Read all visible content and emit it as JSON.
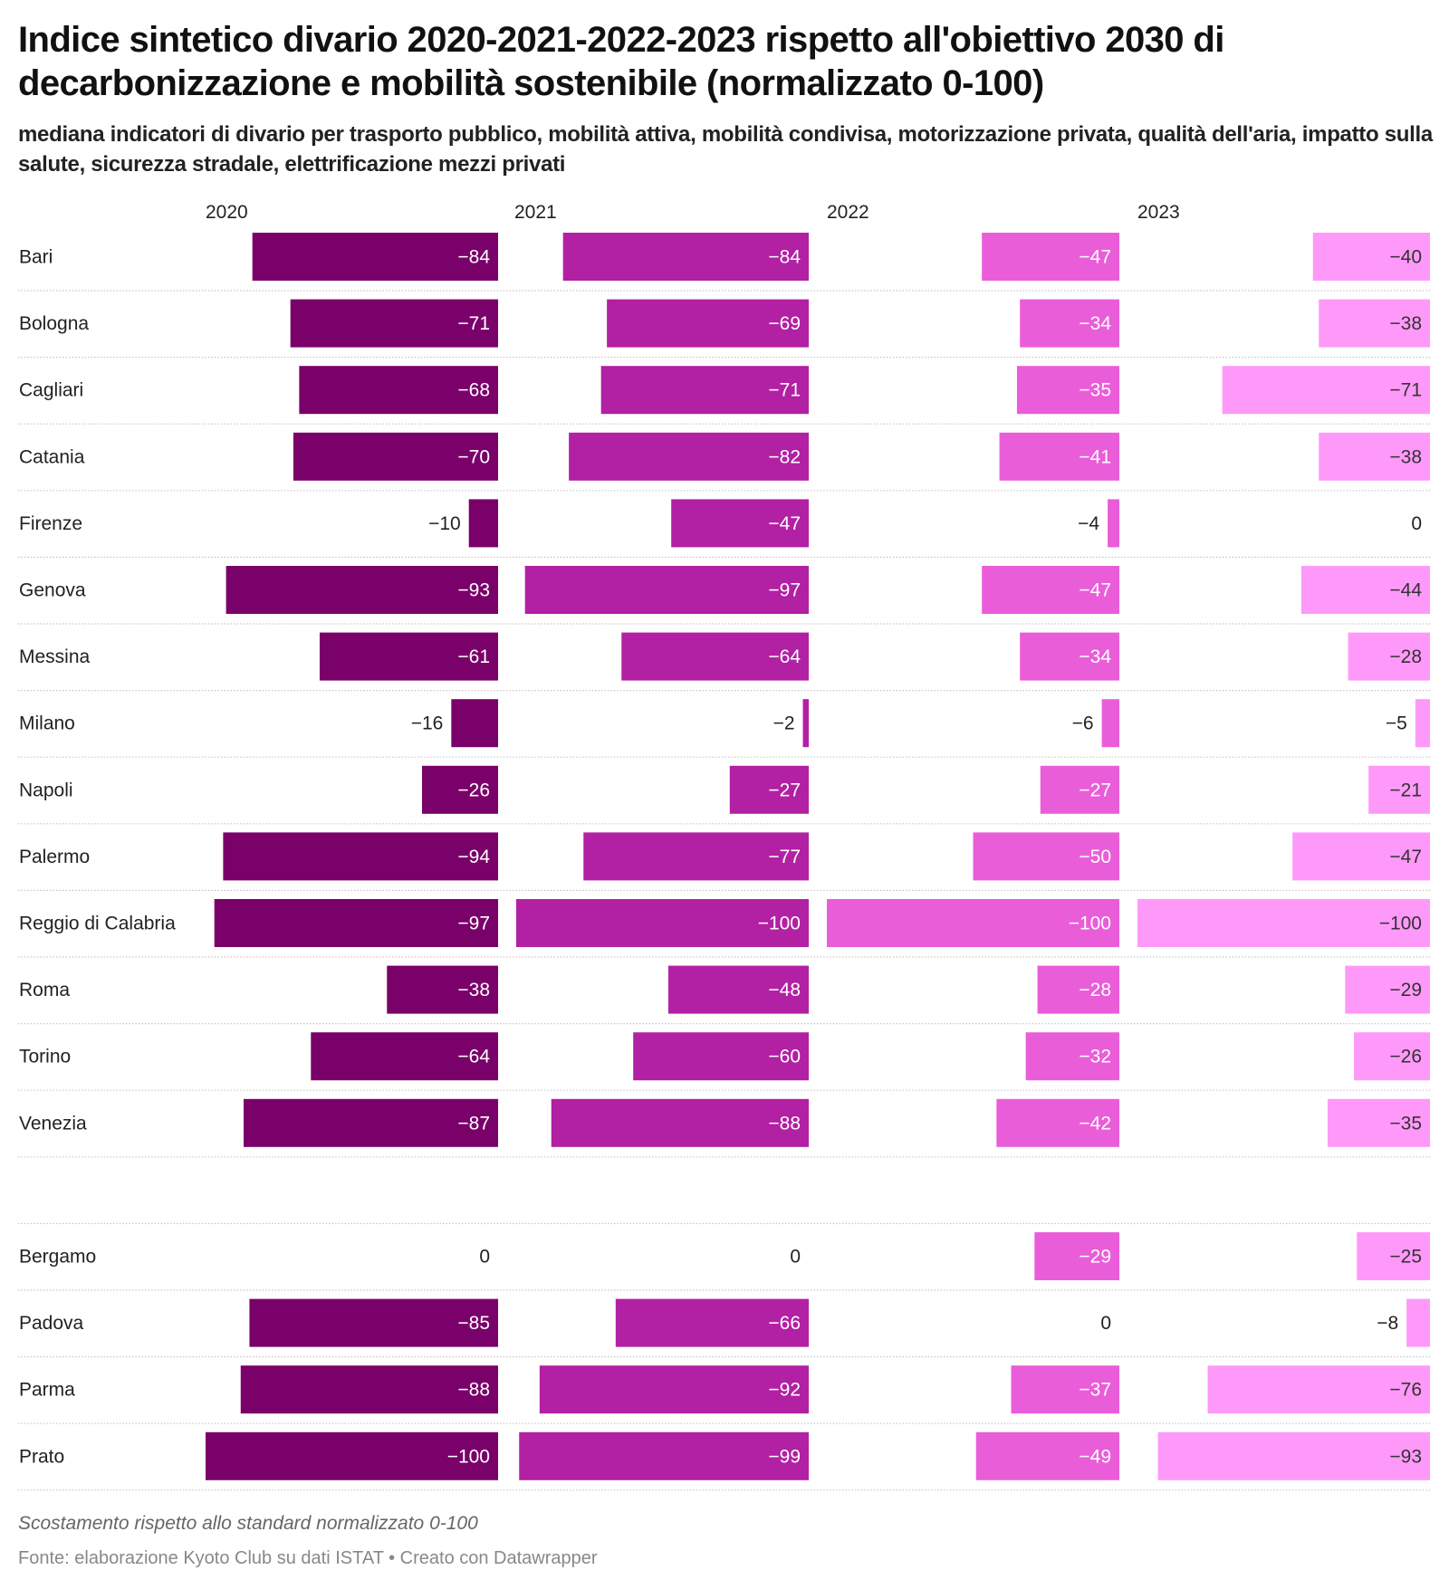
{
  "chart_data": {
    "type": "bar",
    "orientation": "horizontal",
    "layout": "small-multiples-columns",
    "title": "Indice sintetico divario 2020-2021-2022-2023 rispetto all'obiettivo 2030 di decarbonizzazione e mobilità sostenibile (normalizzato 0-100)",
    "subtitle": "mediana indicatori di divario per trasporto pubblico, mobilità attiva, mobilità condivisa, motorizzazione privata, qualità dell'aria, impatto sulla salute, sicurezza stradale, elettrificazione mezzi privati",
    "xlim": [
      -100,
      0
    ],
    "grid": false,
    "legend": "none",
    "series": [
      {
        "name": "2020",
        "color": "#7a006a",
        "label_color": "#ffffff",
        "values": [
          -84,
          -71,
          -68,
          -70,
          -10,
          -93,
          -61,
          -16,
          -26,
          -94,
          -97,
          -38,
          -64,
          -87,
          null,
          0,
          -85,
          -88,
          -100
        ]
      },
      {
        "name": "2021",
        "color": "#b220a3",
        "label_color": "#ffffff",
        "values": [
          -84,
          -69,
          -71,
          -82,
          -47,
          -97,
          -64,
          -2,
          -27,
          -77,
          -100,
          -48,
          -60,
          -88,
          null,
          0,
          -66,
          -92,
          -99
        ]
      },
      {
        "name": "2022",
        "color": "#ea5dd9",
        "label_color": "#ffffff",
        "values": [
          -47,
          -34,
          -35,
          -41,
          -4,
          -47,
          -34,
          -6,
          -27,
          -50,
          -100,
          -28,
          -32,
          -42,
          null,
          -29,
          0,
          -37,
          -49
        ]
      },
      {
        "name": "2023",
        "color": "#ff99f9",
        "label_color": "#333333",
        "values": [
          -40,
          -38,
          -71,
          -38,
          0,
          -44,
          -28,
          -5,
          -21,
          -47,
          -100,
          -29,
          -26,
          -35,
          null,
          -25,
          -8,
          -76,
          -93
        ]
      }
    ],
    "categories": [
      "Bari",
      "Bologna",
      "Cagliari",
      "Catania",
      "Firenze",
      "Genova",
      "Messina",
      "Milano",
      "Napoli",
      "Palermo",
      "Reggio di Calabria",
      "Roma",
      "Torino",
      "Venezia",
      "",
      "Bergamo",
      "Padova",
      "Parma",
      "Prato"
    ],
    "note": "Scostamento rispetto allo standard normalizzato 0-100",
    "source": "Fonte: elaborazione Kyoto Club su dati ISTAT • Creato con Datawrapper"
  },
  "header": {
    "title": "Indice sintetico divario 2020-2021-2022-2023 rispetto all'obiettivo 2030 di decarbonizzazione e mobilità sostenibile (normalizzato 0-100)",
    "subtitle": "mediana indicatori di divario per trasporto pubblico, mobilità attiva, mobilità condivisa, motorizzazione privata, qualità dell'aria, impatto sulla salute, sicurezza stradale, elettrificazione mezzi privati"
  },
  "footer": {
    "note": "Scostamento rispetto allo standard normalizzato 0-100",
    "source": "Fonte: elaborazione Kyoto Club su dati ISTAT • Creato con Datawrapper"
  }
}
